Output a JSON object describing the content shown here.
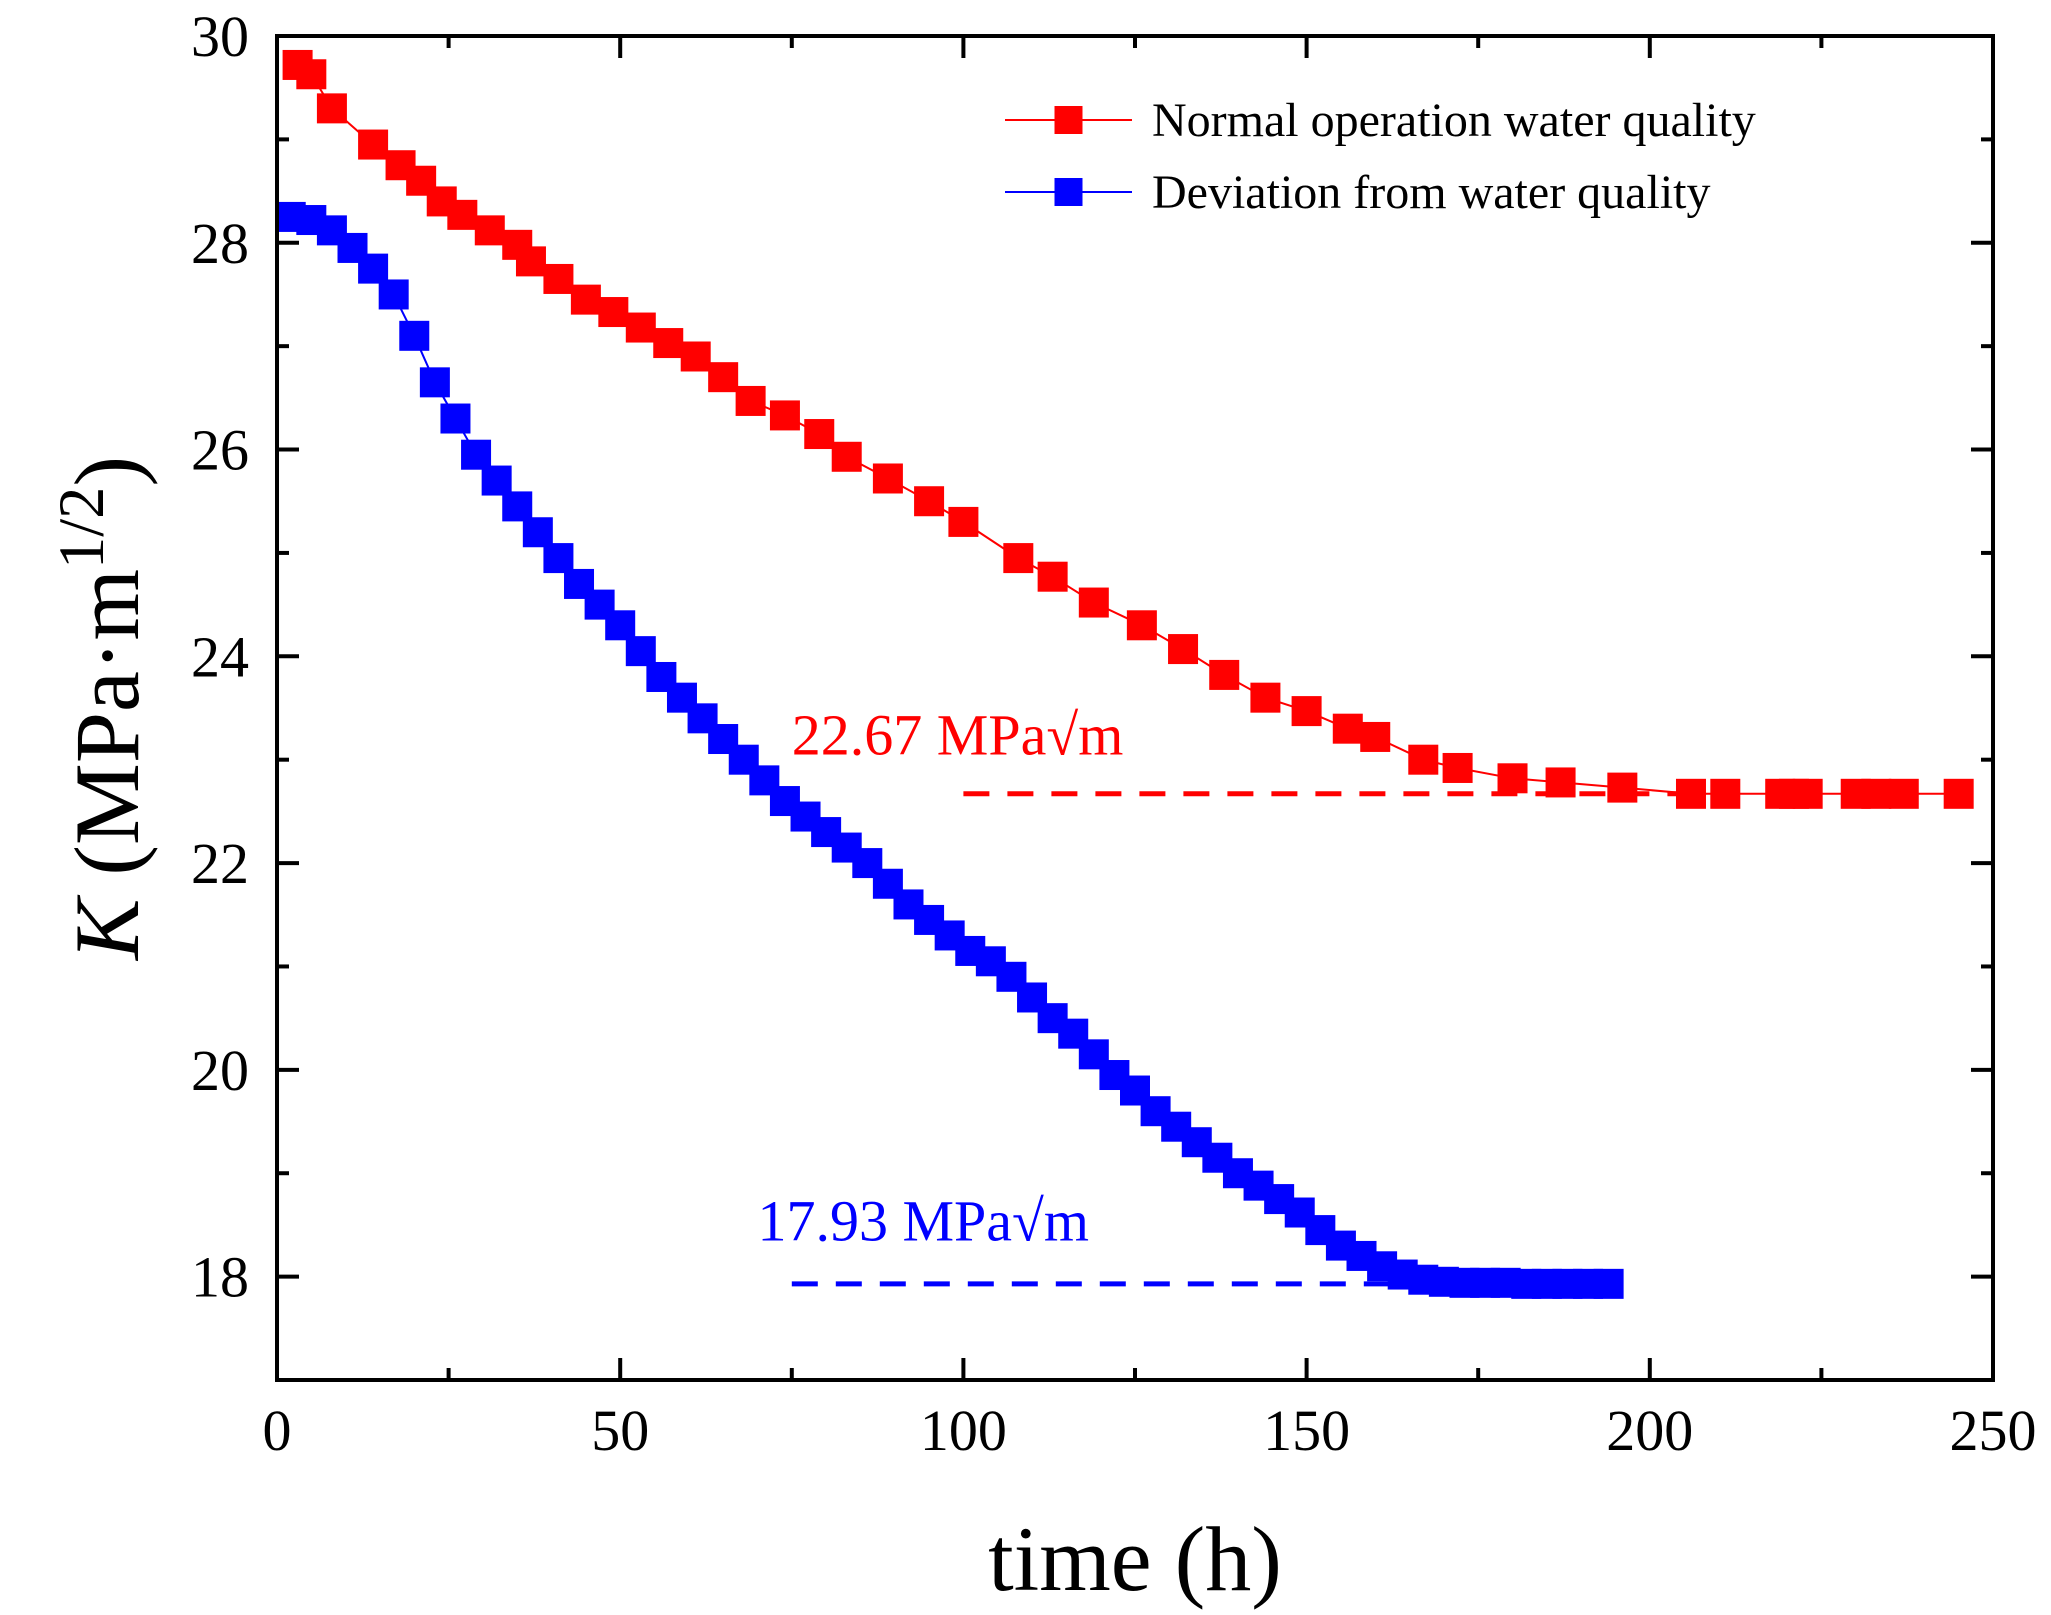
{
  "chart_data": {
    "type": "line",
    "xlabel": "time (h)",
    "ylabel": {
      "var": "K",
      "unit_open": " (MPa·m",
      "unit_sup": "1/2",
      "unit_close": ")"
    },
    "xlim": [
      0,
      250
    ],
    "ylim": [
      17,
      30
    ],
    "xticks": [
      0,
      50,
      100,
      150,
      200,
      250
    ],
    "xtick_labels": [
      "0",
      "50",
      "100",
      "150",
      "200",
      "250"
    ],
    "yticks": [
      18,
      20,
      22,
      24,
      26,
      28,
      30
    ],
    "ytick_labels": [
      "18",
      "20",
      "22",
      "24",
      "26",
      "28",
      "30"
    ],
    "grid": false,
    "legend_position": "top-right",
    "series": [
      {
        "name": "Normal operation water quality",
        "color": "#ff0000",
        "marker": "square",
        "x": [
          3,
          5,
          8,
          14,
          18,
          21,
          24,
          27,
          31,
          35,
          37,
          41,
          45,
          49,
          53,
          57,
          61,
          65,
          69,
          74,
          79,
          83,
          89,
          95,
          100,
          108,
          113,
          119,
          126,
          132,
          138,
          144,
          150,
          156,
          160,
          167,
          172,
          180,
          187,
          196,
          206,
          211,
          219,
          221,
          223,
          230,
          233,
          237,
          245
        ],
        "y": [
          29.72,
          29.63,
          29.3,
          28.95,
          28.75,
          28.6,
          28.4,
          28.27,
          28.12,
          27.98,
          27.82,
          27.65,
          27.45,
          27.33,
          27.18,
          27.03,
          26.9,
          26.7,
          26.47,
          26.33,
          26.15,
          25.93,
          25.72,
          25.5,
          25.3,
          24.95,
          24.77,
          24.52,
          24.3,
          24.07,
          23.82,
          23.6,
          23.47,
          23.3,
          23.22,
          23.0,
          22.92,
          22.82,
          22.78,
          22.73,
          22.67,
          22.67,
          22.67,
          22.67,
          22.67,
          22.67,
          22.67,
          22.67,
          22.67
        ]
      },
      {
        "name": "Deviation from water quality",
        "color": "#0000ff",
        "marker": "square",
        "x": [
          2,
          5,
          8,
          11,
          14,
          17,
          20,
          23,
          26,
          29,
          32,
          35,
          38,
          41,
          44,
          47,
          50,
          53,
          56,
          59,
          62,
          65,
          68,
          71,
          74,
          77,
          80,
          83,
          86,
          89,
          92,
          95,
          98,
          101,
          104,
          107,
          110,
          113,
          116,
          119,
          122,
          125,
          128,
          131,
          134,
          137,
          140,
          143,
          146,
          149,
          152,
          155,
          158,
          161,
          164,
          167,
          170,
          173,
          176,
          179,
          182,
          185,
          188,
          191,
          194
        ],
        "y": [
          28.25,
          28.22,
          28.12,
          27.95,
          27.75,
          27.5,
          27.1,
          26.65,
          26.3,
          25.95,
          25.7,
          25.45,
          25.2,
          24.95,
          24.7,
          24.5,
          24.3,
          24.05,
          23.8,
          23.6,
          23.4,
          23.2,
          23.0,
          22.8,
          22.6,
          22.45,
          22.3,
          22.15,
          22.0,
          21.8,
          21.6,
          21.45,
          21.3,
          21.15,
          21.05,
          20.9,
          20.7,
          20.5,
          20.35,
          20.15,
          19.95,
          19.8,
          19.6,
          19.45,
          19.3,
          19.15,
          19.0,
          18.88,
          18.75,
          18.62,
          18.45,
          18.3,
          18.2,
          18.1,
          18.02,
          17.97,
          17.95,
          17.94,
          17.94,
          17.94,
          17.93,
          17.93,
          17.93,
          17.93,
          17.93
        ]
      }
    ],
    "annotations": [
      {
        "text": "22.67 MPa√m",
        "color": "#ff0000",
        "value": 22.67,
        "anchor_x": 75,
        "anchor_y": 23.05,
        "line_x": [
          100,
          205
        ]
      },
      {
        "text": "17.93 MPa√m",
        "color": "#0000ff",
        "value": 17.93,
        "anchor_x": 70,
        "anchor_y": 18.35,
        "line_x": [
          75,
          165
        ]
      }
    ]
  }
}
